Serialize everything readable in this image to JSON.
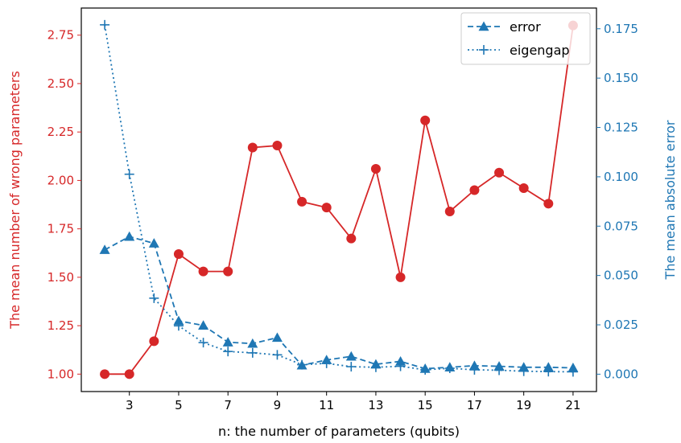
{
  "chart_data": {
    "type": "line",
    "xlabel": "n: the number of parameters (qubits)",
    "ylabel_left": "The mean number of wrong parameters",
    "ylabel_right": "The mean absolute error",
    "xlim": [
      1.05,
      21.95
    ],
    "ylim_left": [
      0.91,
      2.89
    ],
    "ylim_right": [
      -0.0088,
      0.1855
    ],
    "x_ticks": [
      3,
      5,
      7,
      9,
      11,
      13,
      15,
      17,
      19,
      21
    ],
    "y_ticks_left": [
      1.0,
      1.25,
      1.5,
      1.75,
      2.0,
      2.25,
      2.5,
      2.75
    ],
    "y_ticks_right": [
      0.0,
      0.025,
      0.05,
      0.075,
      0.1,
      0.125,
      0.15,
      0.175
    ],
    "x_tick_labels": [
      "3",
      "5",
      "7",
      "9",
      "11",
      "13",
      "15",
      "17",
      "19",
      "21"
    ],
    "y_tick_labels_left": [
      "1.00",
      "1.25",
      "1.50",
      "1.75",
      "2.00",
      "2.25",
      "2.50",
      "2.75"
    ],
    "y_tick_labels_right": [
      "0.000",
      "0.025",
      "0.050",
      "0.075",
      "0.100",
      "0.125",
      "0.150",
      "0.175"
    ],
    "x": [
      2,
      3,
      4,
      5,
      6,
      7,
      8,
      9,
      10,
      11,
      12,
      13,
      14,
      15,
      16,
      17,
      18,
      19,
      20,
      21
    ],
    "series": [
      {
        "name": "",
        "axis": "left",
        "color": "#d62728",
        "marker": "circle",
        "linestyle": "solid",
        "values": [
          1.0,
          1.0,
          1.17,
          1.62,
          1.53,
          1.53,
          2.17,
          2.18,
          1.89,
          1.86,
          1.7,
          2.06,
          1.5,
          2.31,
          1.84,
          1.95,
          2.04,
          1.96,
          1.88,
          2.8
        ]
      },
      {
        "name": "error",
        "axis": "right",
        "color": "#1f77b4",
        "marker": "triangle",
        "linestyle": "dashed",
        "values": [
          0.063,
          0.0697,
          0.0663,
          0.027,
          0.0247,
          0.0162,
          0.0155,
          0.0185,
          0.0045,
          0.0072,
          0.009,
          0.005,
          0.0065,
          0.0028,
          0.0035,
          0.0043,
          0.004,
          0.0035,
          0.0035,
          0.0032
        ]
      },
      {
        "name": "eigengap",
        "axis": "right",
        "color": "#1f77b4",
        "marker": "plus",
        "linestyle": "dotted",
        "values": [
          0.177,
          0.1013,
          0.0385,
          0.0245,
          0.016,
          0.0115,
          0.0108,
          0.0098,
          0.0048,
          0.0055,
          0.0038,
          0.0035,
          0.004,
          0.0022,
          0.003,
          0.0022,
          0.002,
          0.0015,
          0.0013,
          0.0012
        ]
      }
    ],
    "legend": {
      "placement": "top-right",
      "entries": [
        {
          "label": "error",
          "series": 1
        },
        {
          "label": "eigengap",
          "series": 2
        }
      ]
    }
  }
}
